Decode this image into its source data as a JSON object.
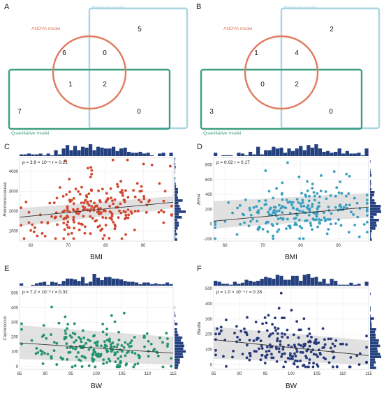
{
  "colors": {
    "anova": "#e07a5f",
    "wilcoxon": "#a8d5e2",
    "quant": "#3c9e7f",
    "hist": "#24407e",
    "red_pts": "#d2462e",
    "cyan_pts": "#3a9fbf",
    "green_pts": "#23946b",
    "navy_pts": "#26397a",
    "band": "#d9d9d9",
    "grid": "#ebebeb"
  },
  "venns": [
    {
      "letter": "A",
      "wilcoxon_label": "Wilcoxon model",
      "anova_label": "ANOVA model",
      "quant_label": "Quantitative model",
      "counts": {
        "wilcoxon_only": "5",
        "anova_only": "6",
        "anova_wilcoxon": "0",
        "all_three": "2",
        "anova_quant": "1",
        "quant_only": "7",
        "wilcoxon_quant": "0"
      }
    },
    {
      "letter": "B",
      "wilcoxon_label": "Wilcoxon model",
      "anova_label": "ANOVA model",
      "quant_label": "Quantitative model",
      "counts": {
        "wilcoxon_only": "2",
        "anova_only": "1",
        "anova_wilcoxon": "4",
        "all_three": "2",
        "anova_quant": "0",
        "quant_only": "3",
        "wilcoxon_quant": "0"
      }
    }
  ],
  "chart_data": [
    {
      "letter": "C",
      "type": "scatter",
      "xlabel": "BMI",
      "ylabel": "Ruminococcaceae",
      "stat_text": "p = 3.9 × 10⁻⁵   r = 0.21",
      "xlim": [
        57,
        98
      ],
      "ylim": [
        500,
        4700
      ],
      "xticks": [
        60,
        70,
        80,
        90
      ],
      "yticks": [
        1000,
        2000,
        3000,
        4000
      ],
      "fit": {
        "x": [
          57,
          98
        ],
        "y": [
          1700,
          2450
        ]
      },
      "band": {
        "lower": [
          1250,
          2150
        ],
        "upper": [
          2150,
          2750
        ]
      },
      "color_key": "red_pts",
      "seed": 11,
      "n_points": 230,
      "x_mean": 78,
      "x_sd": 9,
      "noise_sd": 650
    },
    {
      "letter": "D",
      "type": "scatter",
      "xlabel": "BMI",
      "ylabel": "RFH4",
      "stat_text": "p = 0.02   r = 0.17",
      "xlim": [
        57,
        98
      ],
      "ylim": [
        -230,
        900
      ],
      "xticks": [
        60,
        70,
        80,
        90
      ],
      "yticks": [
        -200,
        0,
        200,
        400,
        600,
        800
      ],
      "fit": {
        "x": [
          57,
          98
        ],
        "y": [
          40,
          230
        ]
      },
      "band": {
        "lower": [
          -60,
          90
        ],
        "upper": [
          310,
          420
        ]
      },
      "color_key": "cyan_pts",
      "seed": 23,
      "n_points": 230,
      "x_mean": 80,
      "x_sd": 9,
      "noise_sd": 160
    },
    {
      "letter": "E",
      "type": "scatter",
      "xlabel": "BW",
      "ylabel": "Coprococcus",
      "stat_text": "p = 7.2 × 10⁻⁶   r = 0.32",
      "xlim": [
        85,
        115
      ],
      "ylim": [
        -20,
        540
      ],
      "xticks": [
        85,
        90,
        95,
        100,
        105,
        110,
        115
      ],
      "yticks": [
        0,
        100,
        200,
        300,
        400,
        500
      ],
      "fit": {
        "x": [
          85,
          115
        ],
        "y": [
          160,
          90
        ]
      },
      "band": {
        "lower": [
          50,
          10
        ],
        "upper": [
          280,
          200
        ]
      },
      "color_key": "green_pts",
      "seed": 37,
      "n_points": 210,
      "x_mean": 99,
      "x_sd": 7,
      "noise_sd": 75
    },
    {
      "letter": "F",
      "type": "scatter",
      "xlabel": "BW",
      "ylabel": "Blautia",
      "stat_text": "p = 1.0 × 10⁻⁴   r = 0.28",
      "xlim": [
        85,
        115
      ],
      "ylim": [
        -30,
        510
      ],
      "xticks": [
        85,
        90,
        95,
        100,
        105,
        110,
        115
      ],
      "yticks": [
        0,
        100,
        200,
        300,
        400,
        500
      ],
      "fit": {
        "x": [
          85,
          115
        ],
        "y": [
          165,
          60
        ]
      },
      "band": {
        "lower": [
          40,
          0
        ],
        "upper": [
          250,
          160
        ]
      },
      "color_key": "navy_pts",
      "seed": 53,
      "n_points": 210,
      "x_mean": 99,
      "x_sd": 7,
      "noise_sd": 85
    }
  ]
}
